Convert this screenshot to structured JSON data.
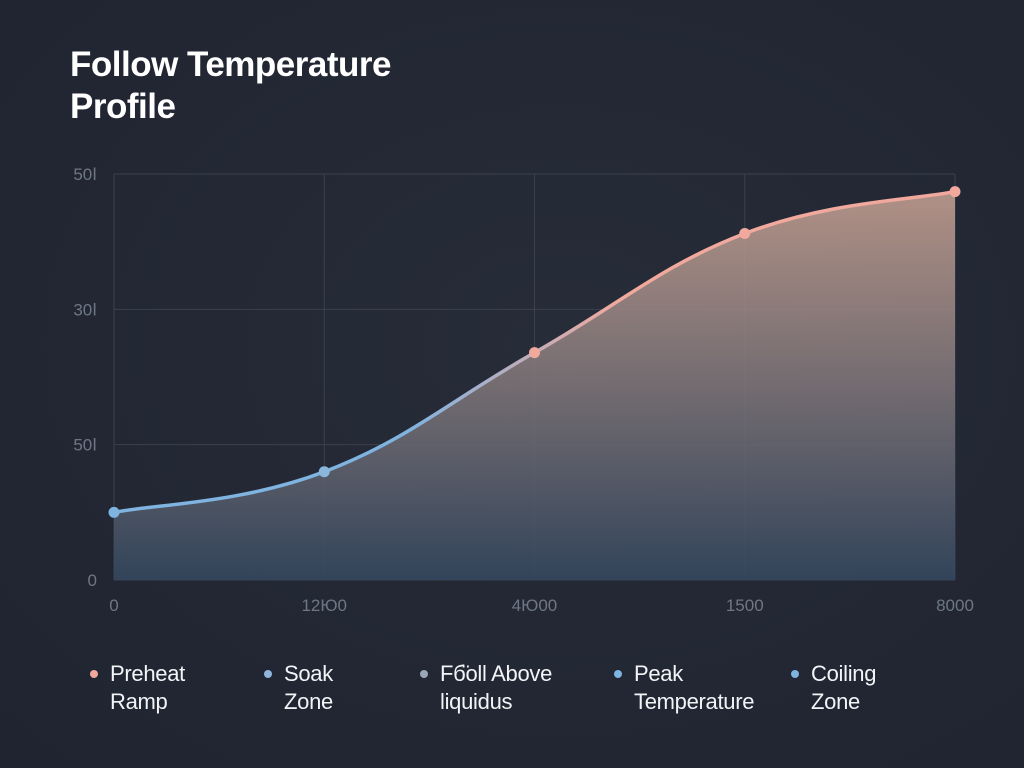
{
  "title": "Follow Temperature\nProfile",
  "chart_data": {
    "type": "area",
    "title": "Follow Temperature Profile",
    "xlabel": "",
    "ylabel": "",
    "x_tick_labels": [
      "0",
      "12Ю0",
      "4Ю00",
      "1500",
      "8000"
    ],
    "y_tick_labels": [
      "0",
      "ߊ50",
      "ߊ30",
      "ߊ50"
    ],
    "x": [
      0,
      1,
      2,
      3,
      4
    ],
    "values": [
      50,
      80,
      168,
      256,
      287
    ],
    "ylim": [
      0,
      300
    ],
    "grid": true,
    "legend_position": "bottom",
    "line_gradient": [
      "#7fb3e0",
      "#f1a99e"
    ],
    "area_gradient_top": "#c9a394",
    "area_gradient_bottom": "#34475e",
    "point_colors": [
      "#7fb3e0",
      "#8bb6dc",
      "#f1a99e",
      "#f1a99e",
      "#f1a99e"
    ]
  },
  "legend": [
    {
      "label": "Preheat\nRamp",
      "color": "#f1a99e"
    },
    {
      "label": "Soak\nZone",
      "color": "#8fb6dc"
    },
    {
      "label": "Fб̈oll Above\nliquidus",
      "color": "#9aa7b6"
    },
    {
      "label": "Peak\nTemperature",
      "color": "#7fb3e0"
    },
    {
      "label": "Coiling\nZone",
      "color": "#7fb3e0"
    }
  ]
}
